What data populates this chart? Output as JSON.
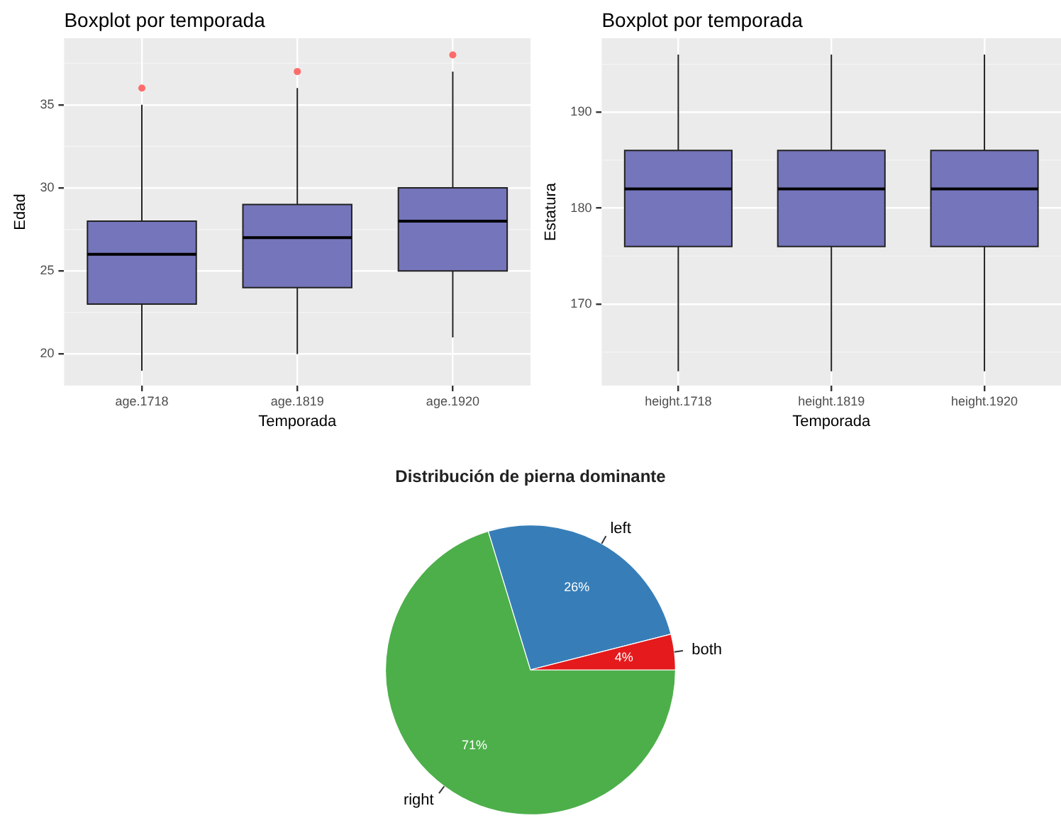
{
  "chart_data": [
    {
      "type": "box",
      "title": "Boxplot por temporada",
      "xlabel": "Temporada",
      "ylabel": "Edad",
      "categories": [
        "age.1718",
        "age.1819",
        "age.1920"
      ],
      "ylim": [
        18.1,
        39
      ],
      "yticks": [
        20,
        25,
        30,
        35
      ],
      "grid": true,
      "series": [
        {
          "color": "#7575bb",
          "boxes": [
            {
              "low": 19,
              "q1": 23,
              "median": 26,
              "q3": 28,
              "high": 35,
              "outliers": [
                36
              ]
            },
            {
              "low": 20,
              "q1": 24,
              "median": 27,
              "q3": 29,
              "high": 36,
              "outliers": [
                37
              ]
            },
            {
              "low": 21,
              "q1": 25,
              "median": 28,
              "q3": 30,
              "high": 37,
              "outliers": [
                38
              ]
            }
          ]
        }
      ]
    },
    {
      "type": "box",
      "title": "Boxplot por temporada",
      "xlabel": "Temporada",
      "ylabel": "Estatura",
      "categories": [
        "height.1718",
        "height.1819",
        "height.1920"
      ],
      "ylim": [
        161.5,
        197.7
      ],
      "yticks": [
        170,
        180,
        190
      ],
      "grid": true,
      "series": [
        {
          "color": "#7575bb",
          "boxes": [
            {
              "low": 163,
              "q1": 176,
              "median": 182,
              "q3": 186,
              "high": 196
            },
            {
              "low": 163,
              "q1": 176,
              "median": 182,
              "q3": 186,
              "high": 196
            },
            {
              "low": 163,
              "q1": 176,
              "median": 182,
              "q3": 186,
              "high": 196
            }
          ]
        }
      ]
    },
    {
      "type": "pie",
      "title": "Distribución de pierna dominante",
      "categories": [
        "right",
        "left",
        "both"
      ],
      "values": [
        71,
        26,
        4
      ],
      "colors": [
        "#4daf4a",
        "#377eb8",
        "#e41a1c"
      ],
      "value_labels": [
        "71%",
        "26%",
        "4%"
      ]
    }
  ]
}
